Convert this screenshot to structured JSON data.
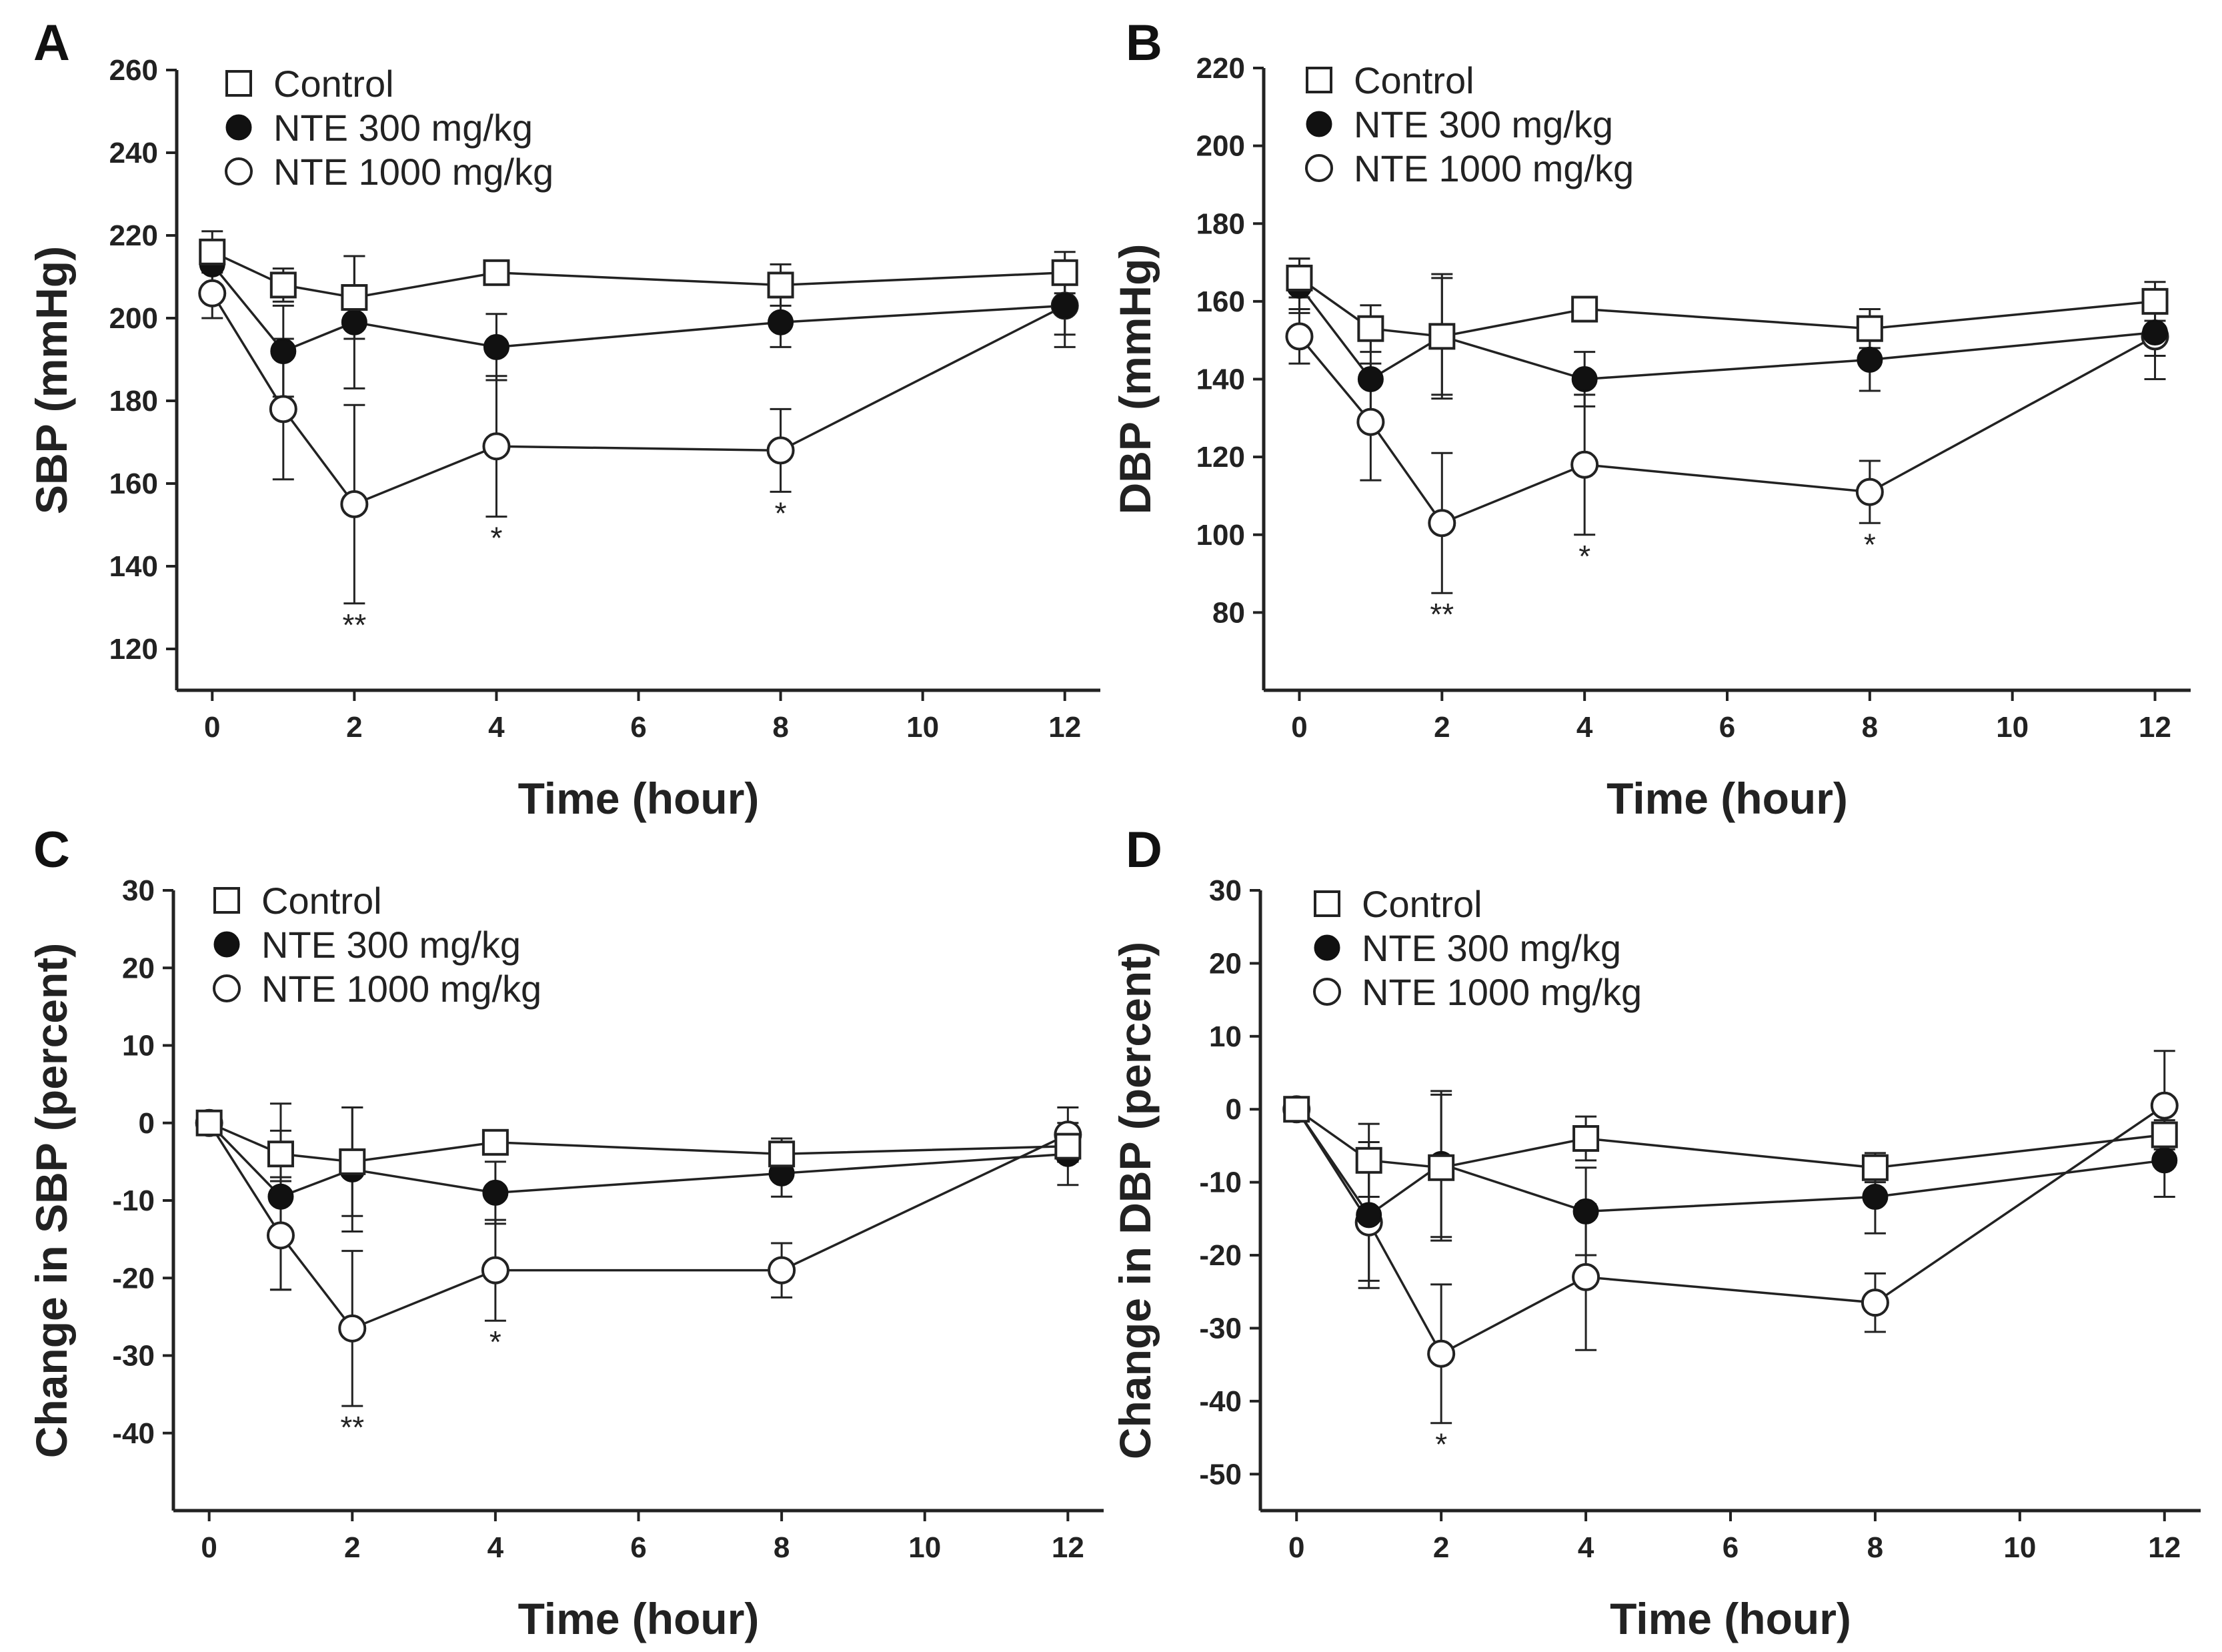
{
  "chart_data": [
    {
      "panel": "A",
      "type": "line",
      "xlabel": "Time (hour)",
      "ylabel": "SBP (mmHg)",
      "xlim": [
        -0.5,
        12.5
      ],
      "ylim": [
        110,
        260
      ],
      "xticks": [
        "0",
        "2",
        "4",
        "6",
        "8",
        "10",
        "12"
      ],
      "yticks": [
        "120",
        "140",
        "160",
        "180",
        "200",
        "220",
        "240",
        "260"
      ],
      "x": [
        0,
        1,
        2,
        4,
        8,
        12
      ],
      "series": [
        {
          "name": "Control",
          "marker": "square",
          "values": [
            216,
            208,
            205,
            211,
            208,
            211
          ],
          "errors": [
            5,
            4,
            10,
            0,
            5,
            5
          ]
        },
        {
          "name": "NTE 300 mg/kg",
          "marker": "filled-circle",
          "values": [
            213,
            192,
            199,
            193,
            199,
            203
          ],
          "errors": [
            5,
            11,
            16,
            8,
            6,
            7
          ]
        },
        {
          "name": "NTE 1000 mg/kg",
          "marker": "open-circle",
          "values": [
            206,
            178,
            155,
            169,
            168,
            203
          ],
          "errors": [
            6,
            17,
            24,
            17,
            10,
            10
          ]
        }
      ],
      "annotations": [
        {
          "x": 2,
          "text": "**"
        },
        {
          "x": 4,
          "text": "*"
        },
        {
          "x": 8,
          "text": "*"
        }
      ]
    },
    {
      "panel": "B",
      "type": "line",
      "xlabel": "Time (hour)",
      "ylabel": "DBP (mmHg)",
      "xlim": [
        -0.5,
        12.5
      ],
      "ylim": [
        60,
        220
      ],
      "xticks": [
        "0",
        "2",
        "4",
        "6",
        "8",
        "10",
        "12"
      ],
      "yticks": [
        "80",
        "100",
        "120",
        "140",
        "160",
        "180",
        "200",
        "220"
      ],
      "x": [
        0,
        1,
        2,
        4,
        8,
        12
      ],
      "series": [
        {
          "name": "Control",
          "marker": "square",
          "values": [
            166,
            153,
            151,
            158,
            153,
            160
          ],
          "errors": [
            5,
            6,
            15,
            0,
            5,
            5
          ]
        },
        {
          "name": "NTE 300 mg/kg",
          "marker": "filled-circle",
          "values": [
            164,
            140,
            151,
            140,
            145,
            152
          ],
          "errors": [
            7,
            11,
            16,
            7,
            8,
            6
          ]
        },
        {
          "name": "NTE 1000 mg/kg",
          "marker": "open-circle",
          "values": [
            151,
            129,
            103,
            118,
            111,
            151
          ],
          "errors": [
            7,
            15,
            18,
            18,
            8,
            11
          ]
        }
      ],
      "annotations": [
        {
          "x": 2,
          "text": "**"
        },
        {
          "x": 4,
          "text": "*"
        },
        {
          "x": 8,
          "text": "*"
        }
      ]
    },
    {
      "panel": "C",
      "type": "line",
      "xlabel": "Time (hour)",
      "ylabel": "Change in SBP (percent)",
      "xlim": [
        -0.5,
        12.5
      ],
      "ylim": [
        -50,
        30
      ],
      "xticks": [
        "0",
        "2",
        "4",
        "6",
        "8",
        "10",
        "12"
      ],
      "yticks": [
        "-40",
        "-30",
        "-20",
        "-10",
        "0",
        "10",
        "20",
        "30"
      ],
      "x": [
        0,
        1,
        2,
        4,
        8,
        12
      ],
      "series": [
        {
          "name": "Control",
          "marker": "square",
          "values": [
            0,
            -4,
            -5,
            -2.5,
            -4,
            -3
          ],
          "errors": [
            0,
            3,
            7,
            0,
            2,
            2
          ]
        },
        {
          "name": "NTE 300 mg/kg",
          "marker": "filled-circle",
          "values": [
            0,
            -9.5,
            -6,
            -9,
            -6.5,
            -4
          ],
          "errors": [
            0,
            12,
            8,
            4,
            3,
            4
          ]
        },
        {
          "name": "NTE 1000 mg/kg",
          "marker": "open-circle",
          "values": [
            0,
            -14.5,
            -26.5,
            -19,
            -19,
            -1.5
          ],
          "errors": [
            0,
            7,
            10,
            6.5,
            3.5,
            3.5
          ]
        }
      ],
      "annotations": [
        {
          "x": 2,
          "text": "**"
        },
        {
          "x": 4,
          "text": "*"
        }
      ]
    },
    {
      "panel": "D",
      "type": "line",
      "xlabel": "Time (hour)",
      "ylabel": "Change in DBP (percent)",
      "xlim": [
        -0.5,
        12.5
      ],
      "ylim": [
        -55,
        30
      ],
      "xticks": [
        "0",
        "2",
        "4",
        "6",
        "8",
        "10",
        "12"
      ],
      "yticks": [
        "-50",
        "-40",
        "-30",
        "-20",
        "-10",
        "0",
        "10",
        "20",
        "30"
      ],
      "x": [
        0,
        1,
        2,
        4,
        8,
        12
      ],
      "series": [
        {
          "name": "Control",
          "marker": "square",
          "values": [
            0,
            -7,
            -8,
            -4,
            -8,
            -3.5
          ],
          "errors": [
            0,
            5,
            10,
            3,
            2,
            2
          ]
        },
        {
          "name": "NTE 300 mg/kg",
          "marker": "filled-circle",
          "values": [
            0,
            -14.5,
            -7.5,
            -14,
            -12,
            -7
          ],
          "errors": [
            0,
            10,
            10,
            6,
            5,
            5
          ]
        },
        {
          "name": "NTE 1000 mg/kg",
          "marker": "open-circle",
          "values": [
            0,
            -15.5,
            -33.5,
            -23,
            -26.5,
            0.5
          ],
          "errors": [
            0,
            8,
            9.5,
            10,
            4,
            7.5
          ]
        }
      ],
      "annotations": [
        {
          "x": 2,
          "text": "*"
        }
      ]
    }
  ]
}
